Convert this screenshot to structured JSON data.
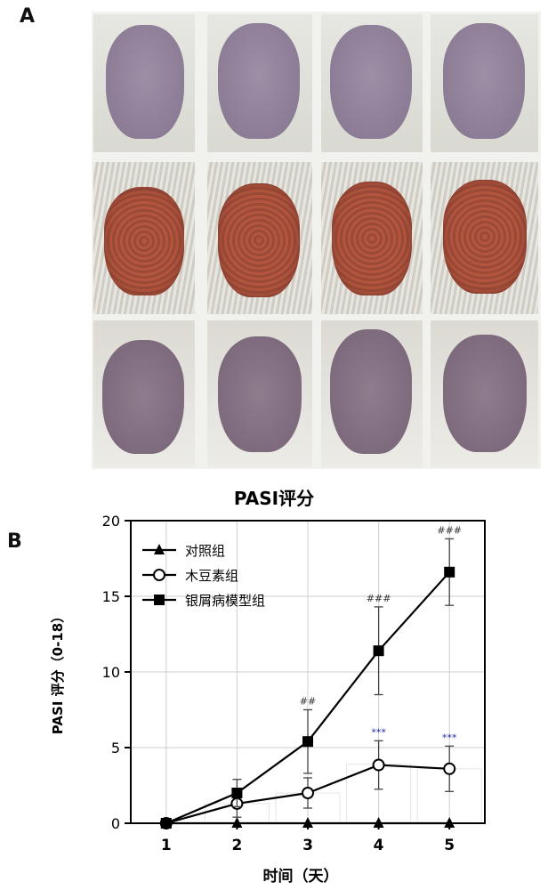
{
  "panel_a_label": "A",
  "panel_b_label": "B",
  "photos": {
    "rows": [
      {
        "group": "control",
        "count": 4
      },
      {
        "group": "psoriasis-model",
        "count": 4
      },
      {
        "group": "treated",
        "count": 4
      }
    ]
  },
  "chart_data": {
    "type": "line",
    "title": "PASI评分",
    "xlabel": "时间（天）",
    "ylabel": "PASI 评分（0-18）",
    "categories": [
      1,
      2,
      3,
      4,
      5
    ],
    "xlim": [
      0.5,
      5.5
    ],
    "ylim": [
      0,
      20
    ],
    "yticks": [
      0,
      5,
      10,
      15,
      20
    ],
    "grid": true,
    "legend_position": "top-left",
    "series": [
      {
        "name": "对照组",
        "marker": "triangle",
        "values": [
          0,
          0,
          0,
          0,
          0
        ],
        "errors": [
          0,
          0,
          0,
          0,
          0
        ],
        "annotations": [
          "",
          "",
          "",
          "",
          ""
        ],
        "color": "#000000"
      },
      {
        "name": "木豆素组",
        "marker": "circle-open",
        "values": [
          0,
          1.3,
          2.0,
          3.85,
          3.6
        ],
        "errors": [
          0,
          0.9,
          1.0,
          1.6,
          1.5
        ],
        "annotations": [
          "",
          "",
          "",
          "***",
          "***"
        ],
        "color": "#000000",
        "annotation_color": "#1f2aa0"
      },
      {
        "name": "银屑病模型组",
        "marker": "square",
        "values": [
          0,
          2.0,
          5.4,
          11.4,
          16.6
        ],
        "errors": [
          0,
          0.9,
          2.1,
          2.9,
          2.2
        ],
        "annotations": [
          "",
          "",
          "##",
          "###",
          "###"
        ],
        "color": "#000000"
      }
    ],
    "background_bars": {
      "values": [
        0,
        1.3,
        2.0,
        3.9,
        3.6
      ],
      "color": "#e6e6e6"
    }
  }
}
